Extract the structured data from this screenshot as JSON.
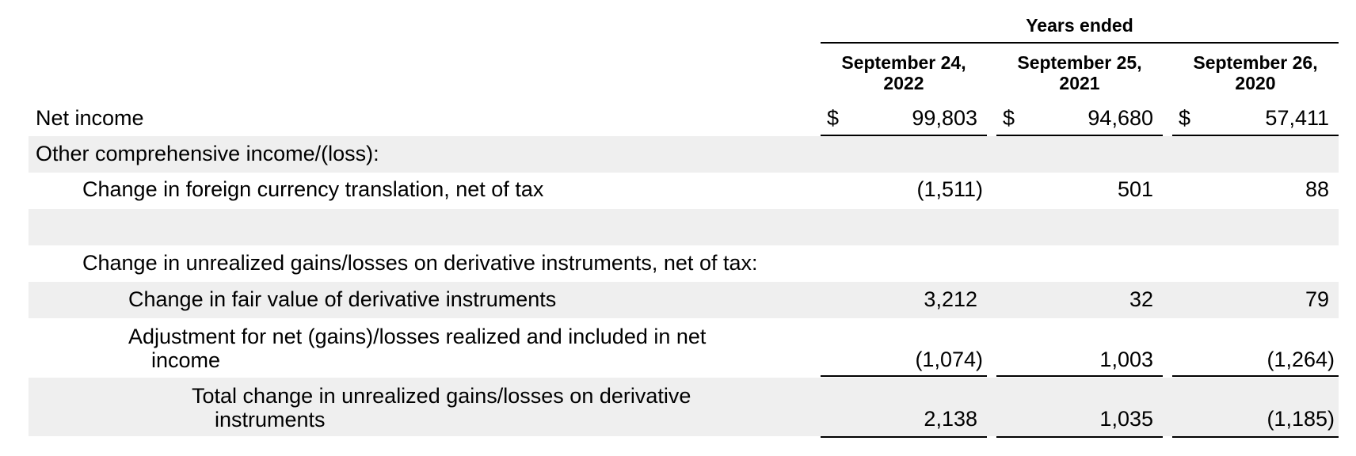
{
  "header": {
    "period_label": "Years ended",
    "columns": [
      {
        "line1": "September 24,",
        "line2": "2022"
      },
      {
        "line1": "September 25,",
        "line2": "2021"
      },
      {
        "line1": "September 26,",
        "line2": "2020"
      }
    ]
  },
  "rows": [
    {
      "label": "Net income",
      "currency": "$",
      "values": [
        "99,803",
        "94,680",
        "57,411"
      ]
    },
    {
      "label": "Other comprehensive income/(loss):",
      "values": [
        "",
        "",
        ""
      ]
    },
    {
      "label": "Change in foreign currency translation, net of tax",
      "values": [
        "(1,511)",
        "501",
        "88"
      ]
    },
    {
      "label": "",
      "values": [
        "",
        "",
        ""
      ]
    },
    {
      "label": "Change in unrealized gains/losses on derivative instruments, net of tax:",
      "values": [
        "",
        "",
        ""
      ]
    },
    {
      "label": "Change in fair value of derivative instruments",
      "values": [
        "3,212",
        "32",
        "79"
      ]
    },
    {
      "label_line1": "Adjustment for net (gains)/losses realized and included in net",
      "label_line2": "income",
      "values": [
        "(1,074)",
        "1,003",
        "(1,264)"
      ]
    },
    {
      "label_line1": "Total change in unrealized gains/losses on derivative",
      "label_line2": "instruments",
      "values": [
        "2,138",
        "1,035",
        "(1,185)"
      ]
    }
  ]
}
